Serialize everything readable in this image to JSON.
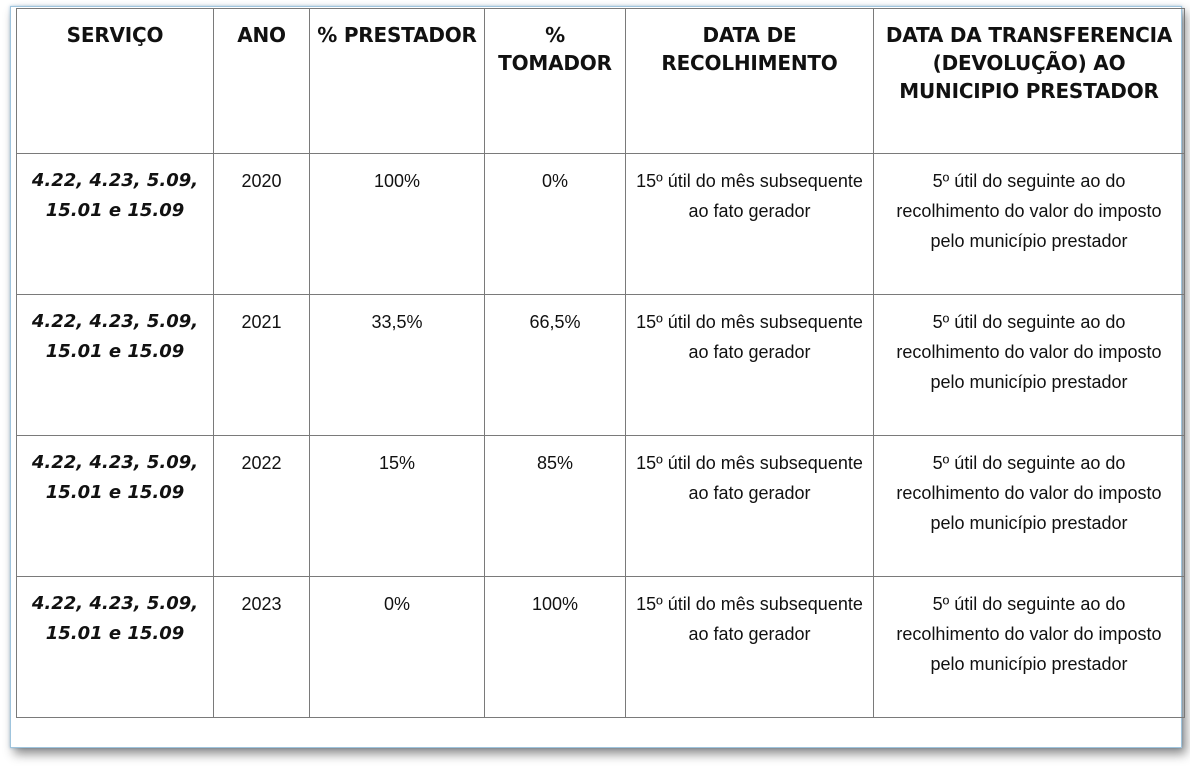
{
  "table": {
    "headers": [
      "SERVIÇO",
      "ANO",
      "% PRESTADOR",
      "% TOMADOR",
      "DATA DE RECOLHIMENTO",
      "DATA DA TRANSFERENCIA (DEVOLUÇÃO) AO MUNICIPIO PRESTADOR"
    ],
    "rows": [
      {
        "servico": "4.22, 4.23, 5.09, 15.01 e 15.09",
        "ano": "2020",
        "prestador": "100%",
        "tomador": "0%",
        "recolhimento": "15º útil do mês subsequente ao fato gerador",
        "transferencia": "5º útil do seguinte ao do recolhimento do valor do imposto pelo município prestador"
      },
      {
        "servico": "4.22, 4.23, 5.09, 15.01 e 15.09",
        "ano": "2021",
        "prestador": "33,5%",
        "tomador": "66,5%",
        "recolhimento": "15º útil do mês subsequente ao fato gerador",
        "transferencia": "5º útil do seguinte ao do recolhimento do valor do imposto pelo município prestador"
      },
      {
        "servico": "4.22, 4.23, 5.09, 15.01 e 15.09",
        "ano": "2022",
        "prestador": "15%",
        "tomador": "85%",
        "recolhimento": "15º útil do mês subsequente ao fato gerador",
        "transferencia": "5º útil do seguinte ao do recolhimento do valor do imposto pelo município prestador"
      },
      {
        "servico": "4.22, 4.23, 5.09, 15.01 e 15.09",
        "ano": "2023",
        "prestador": "0%",
        "tomador": "100%",
        "recolhimento": "15º útil do mês subsequente ao fato gerador",
        "transferencia": "5º útil do seguinte ao do recolhimento do valor do imposto pelo município prestador"
      }
    ]
  }
}
